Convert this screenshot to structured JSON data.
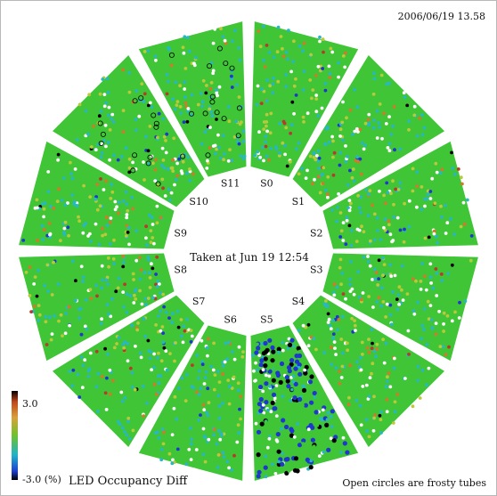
{
  "timestamp": "2006/06/19   13.58",
  "center_note": "Taken at Jun 19 12:54",
  "footnote": "Open circles are frosty tubes",
  "legend": {
    "title": "LED Occupancy Diff",
    "max_label": "3.0",
    "min_label": "-3.0 (%)"
  },
  "sectors": [
    "S0",
    "S1",
    "S2",
    "S3",
    "S4",
    "S5",
    "S6",
    "S7",
    "S8",
    "S9",
    "S10",
    "S11"
  ],
  "colors": {
    "base": "#3fc536",
    "cyan": "#29b8c0",
    "blue": "#1e37cf",
    "black": "#000000",
    "white": "#ffffff",
    "orange": "#d27a2a",
    "red": "#b83a2a",
    "yellow": "#b9c93a"
  }
}
